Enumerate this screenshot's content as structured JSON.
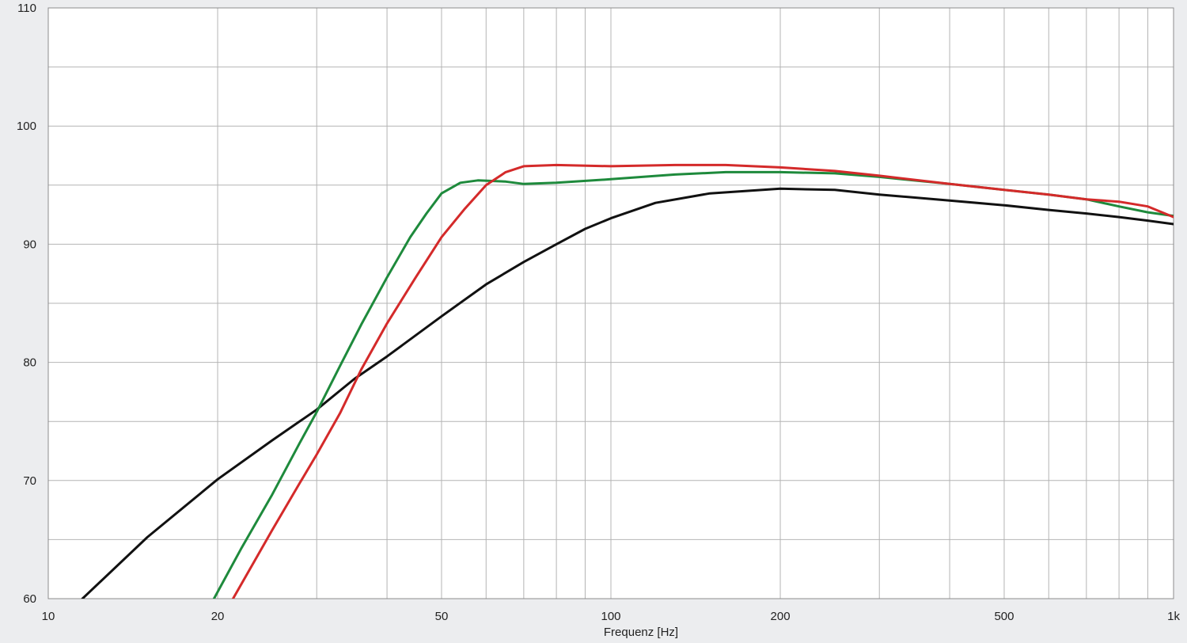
{
  "chart_data": {
    "type": "line",
    "title": "",
    "xlabel": "Frequenz [Hz]",
    "ylabel": "",
    "x_scale": "log",
    "xlim": [
      10,
      1000
    ],
    "ylim": [
      60,
      110
    ],
    "grid": true,
    "x_major_ticks": [
      {
        "value": 10,
        "label": "10"
      },
      {
        "value": 20,
        "label": "20"
      },
      {
        "value": 50,
        "label": "50"
      },
      {
        "value": 100,
        "label": "100"
      },
      {
        "value": 200,
        "label": "200"
      },
      {
        "value": 500,
        "label": "500"
      },
      {
        "value": 1000,
        "label": "1k"
      }
    ],
    "x_minor_grid": [
      30,
      40,
      60,
      70,
      80,
      90,
      300,
      400,
      600,
      700,
      800,
      900
    ],
    "y_major_ticks": [
      {
        "value": 60,
        "label": "60"
      },
      {
        "value": 70,
        "label": "70"
      },
      {
        "value": 80,
        "label": "80"
      },
      {
        "value": 90,
        "label": "90"
      },
      {
        "value": 100,
        "label": "100"
      },
      {
        "value": 110,
        "label": "110"
      }
    ],
    "y_minor_grid": [
      65,
      75,
      85,
      95,
      105
    ],
    "series": [
      {
        "color": "#111111",
        "x": [
          11.5,
          15,
          20,
          25,
          30,
          35,
          40,
          50,
          60,
          70,
          80,
          90,
          100,
          120,
          150,
          200,
          250,
          300,
          400,
          500,
          600,
          700,
          800,
          900,
          1000
        ],
        "y": [
          60,
          65.2,
          70.1,
          73.4,
          76.0,
          78.6,
          80.5,
          83.9,
          86.6,
          88.5,
          90.0,
          91.3,
          92.2,
          93.5,
          94.3,
          94.7,
          94.6,
          94.2,
          93.7,
          93.3,
          92.9,
          92.6,
          92.3,
          92.0,
          91.7
        ]
      },
      {
        "color": "#1e8a3c",
        "x": [
          19.7,
          22,
          25,
          28,
          30,
          33,
          36,
          40,
          44,
          47,
          50,
          54,
          58,
          65,
          70,
          80,
          100,
          130,
          160,
          200,
          250,
          300,
          400,
          500,
          600,
          700,
          800,
          900,
          1000
        ],
        "y": [
          60,
          64.2,
          68.8,
          73.2,
          75.8,
          79.7,
          83.2,
          87.2,
          90.6,
          92.6,
          94.3,
          95.2,
          95.4,
          95.3,
          95.1,
          95.2,
          95.5,
          95.9,
          96.1,
          96.1,
          96.0,
          95.7,
          95.1,
          94.6,
          94.2,
          93.8,
          93.2,
          92.7,
          92.4
        ]
      },
      {
        "color": "#d42a2a",
        "x": [
          21.3,
          25,
          28,
          30,
          33,
          36,
          40,
          45,
          50,
          55,
          60,
          65,
          70,
          80,
          100,
          130,
          160,
          200,
          250,
          300,
          400,
          500,
          600,
          700,
          800,
          900,
          1000
        ],
        "y": [
          60,
          65.8,
          69.8,
          72.2,
          75.7,
          79.4,
          83.3,
          87.2,
          90.6,
          93.0,
          95.0,
          96.1,
          96.6,
          96.7,
          96.6,
          96.7,
          96.7,
          96.5,
          96.2,
          95.8,
          95.1,
          94.6,
          94.2,
          93.8,
          93.6,
          93.2,
          92.3
        ]
      }
    ]
  }
}
